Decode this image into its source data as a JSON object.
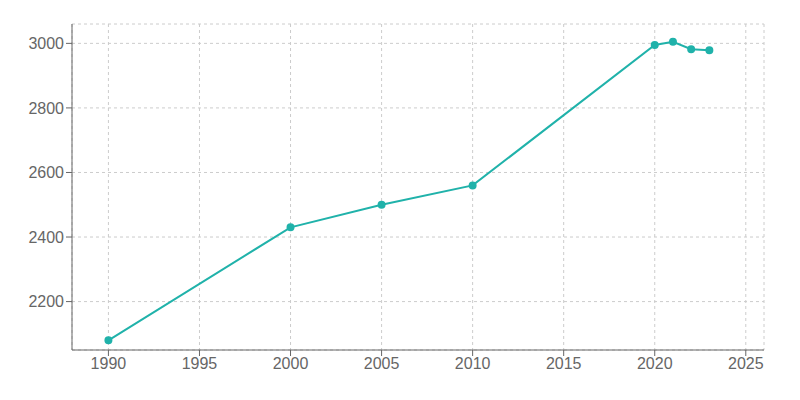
{
  "chart_data": {
    "type": "line",
    "x": [
      1990,
      2000,
      2005,
      2010,
      2020,
      2021,
      2022,
      2023
    ],
    "values": [
      2080,
      2430,
      2500,
      2560,
      2995,
      3005,
      2982,
      2979
    ],
    "color": "#20b2aa",
    "marker": "circle",
    "xlim": [
      1988,
      2026
    ],
    "ylim": [
      2050,
      3060
    ],
    "xticks": [
      1990,
      1995,
      2000,
      2005,
      2010,
      2015,
      2020,
      2025
    ],
    "yticks": [
      2200,
      2400,
      2600,
      2800,
      3000
    ],
    "grid": true
  }
}
